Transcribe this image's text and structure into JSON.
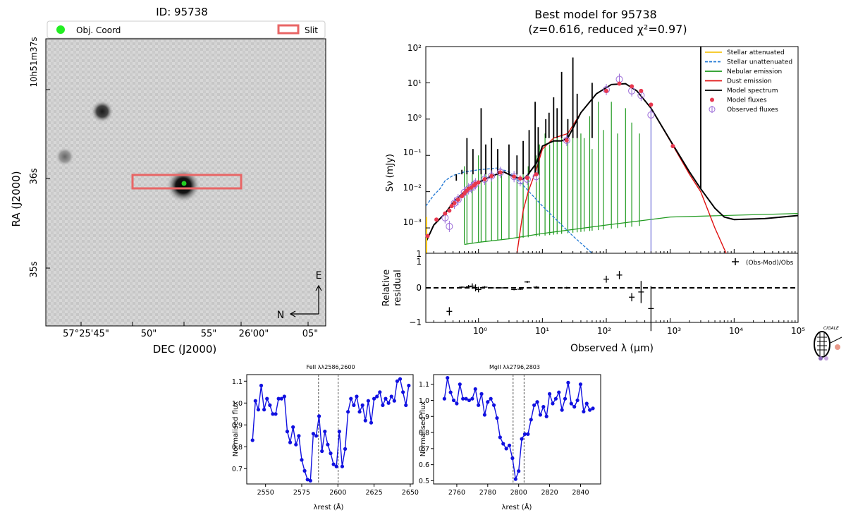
{
  "image_panel": {
    "title": "ID: 95738",
    "legend": {
      "obj_coord": "Obj. Coord",
      "slit": "Slit"
    },
    "xlabel": "DEC (J2000)",
    "ylabel": "RA (J2000)",
    "xticks": [
      "57°25'45\"",
      "50\"",
      "55\"",
      "26'00\"",
      "05\""
    ],
    "yticks": {
      "t37": "10h51m37s",
      "t36": "36s",
      "t35": "35s"
    },
    "compass": {
      "north": "N",
      "east": "E"
    },
    "colors": {
      "slit": "#e86666",
      "dot": "#22cc22"
    }
  },
  "sed_panel": {
    "title_line1": "Best model for 95738",
    "title_line2": "(z=0.616, reduced χ²=0.97)",
    "ylabel": "Sν (mJy)",
    "resid_label_1": "Relative",
    "resid_label_2": "residual",
    "xlabel": "Observed λ (μm)",
    "yticks_sed": [
      "10²",
      "10¹",
      "10⁰",
      "10⁻¹",
      "10⁻²",
      "10⁻³",
      "1"
    ],
    "yticks_res": [
      "1",
      "0",
      "−1"
    ],
    "xticks": [
      "10⁰",
      "10¹",
      "10²",
      "10³",
      "10⁴",
      "10⁵"
    ],
    "legend": [
      {
        "label": "Stellar attenuated",
        "color": "#f5c518",
        "style": "solid"
      },
      {
        "label": "Stellar unattenuated",
        "color": "#1f77d4",
        "style": "dashed"
      },
      {
        "label": "Nebular emission",
        "color": "#1f9a1f",
        "style": "solid"
      },
      {
        "label": "Dust emission",
        "color": "#e01010",
        "style": "solid"
      },
      {
        "label": "Model spectrum",
        "color": "#000000",
        "style": "solid"
      },
      {
        "label": "Model fluxes",
        "color": "#e8384f",
        "style": "dot"
      },
      {
        "label": "Observed fluxes",
        "color": "#9b6bd8",
        "style": "errcircle"
      }
    ],
    "resid_legend": "(Obs-Mod)/Obs",
    "logo_text": "CIGALE"
  },
  "chart_data": [
    {
      "type": "scatter",
      "title": "Best model for 95738 (z=0.616, reduced χ²=0.97)",
      "xlabel": "Observed λ (μm)",
      "ylabel": "Sν (mJy)",
      "xscale": "log",
      "yscale": "log",
      "xlim": [
        0.15,
        100000
      ],
      "ylim": [
        0.0002,
        100
      ],
      "model_fluxes": {
        "x": [
          0.16,
          0.22,
          0.3,
          0.35,
          0.38,
          0.42,
          0.48,
          0.55,
          0.6,
          0.65,
          0.7,
          0.77,
          0.85,
          0.9,
          1.0,
          1.25,
          1.6,
          2.2,
          3.6,
          4.5,
          5.8,
          8.0,
          24,
          100,
          160,
          250,
          350,
          500,
          1100
        ],
        "y": [
          0.0006,
          0.0017,
          0.0025,
          0.003,
          0.004,
          0.0048,
          0.006,
          0.0075,
          0.009,
          0.0105,
          0.012,
          0.013,
          0.015,
          0.0165,
          0.018,
          0.022,
          0.027,
          0.034,
          0.026,
          0.023,
          0.024,
          0.03,
          0.26,
          6.0,
          9.5,
          8.0,
          6.0,
          2.5,
          0.18
        ]
      },
      "observed_fluxes": {
        "x": [
          0.3,
          0.35,
          0.42,
          0.48,
          0.6,
          0.7,
          0.77,
          0.85,
          0.9,
          1.25,
          1.6,
          2.2,
          3.6,
          4.5,
          5.8,
          8.0,
          24,
          100,
          160,
          250,
          350,
          500
        ],
        "y": [
          0.0019,
          0.0011,
          0.0048,
          0.006,
          0.0095,
          0.012,
          0.013,
          0.015,
          0.0165,
          0.022,
          0.027,
          0.034,
          0.026,
          0.02,
          0.022,
          0.026,
          0.26,
          6.5,
          12.5,
          6.0,
          4.5,
          1.3
        ]
      },
      "residuals": {
        "x": [
          0.35,
          0.55,
          0.7,
          0.8,
          0.9,
          1.0,
          1.25,
          1.6,
          2.2,
          3.6,
          4.5,
          5.8,
          8.0,
          24,
          100,
          160,
          250,
          350,
          500
        ],
        "y": [
          -0.68,
          0.02,
          0.03,
          0.05,
          0.0,
          -0.05,
          0.02,
          0.0,
          0.0,
          -0.05,
          -0.04,
          0.17,
          0.02,
          0.0,
          0.25,
          0.37,
          -0.27,
          -0.12,
          -0.6
        ],
        "yerr": [
          0.12,
          0.02,
          0.05,
          0.08,
          0.1,
          0.08,
          0.03,
          0.02,
          0.02,
          0.02,
          0.02,
          0.03,
          0.03,
          0.03,
          0.1,
          0.12,
          0.12,
          0.32,
          0.65
        ]
      }
    },
    {
      "type": "line",
      "title": "FeII λλ2586,2600",
      "xlabel": "λrest (Å)",
      "ylabel": "Normalised flux",
      "xlim": [
        2537,
        2652
      ],
      "ylim": [
        0.63,
        1.13
      ],
      "xticks": [
        2550,
        2575,
        2600,
        2625,
        2650
      ],
      "yticks": [
        0.7,
        0.8,
        0.9,
        1.0,
        1.1
      ],
      "vlines": [
        2586.6,
        2600.2
      ],
      "x": [
        2541,
        2543,
        2545,
        2547,
        2549,
        2551,
        2553,
        2555,
        2557,
        2559,
        2561,
        2563,
        2565,
        2567,
        2569,
        2571,
        2573,
        2575,
        2577,
        2579,
        2581,
        2583,
        2585,
        2587,
        2589,
        2591,
        2593,
        2595,
        2597,
        2599,
        2601,
        2603,
        2605,
        2607,
        2609,
        2611,
        2613,
        2615,
        2617,
        2619,
        2621,
        2623,
        2625,
        2627,
        2629,
        2631,
        2633,
        2635,
        2637,
        2639,
        2641,
        2643,
        2645,
        2647,
        2649
      ],
      "y": [
        0.83,
        1.01,
        0.97,
        1.08,
        0.97,
        1.02,
        0.99,
        0.95,
        0.95,
        1.02,
        1.02,
        1.03,
        0.87,
        0.82,
        0.89,
        0.81,
        0.85,
        0.74,
        0.69,
        0.65,
        0.645,
        0.86,
        0.85,
        0.94,
        0.78,
        0.87,
        0.81,
        0.77,
        0.72,
        0.71,
        0.87,
        0.71,
        0.79,
        0.96,
        1.02,
        0.99,
        1.03,
        0.96,
        0.99,
        0.92,
        1.01,
        0.91,
        1.02,
        1.03,
        1.05,
        0.99,
        1.02,
        1.0,
        1.03,
        1.01,
        1.1,
        1.11,
        1.05,
        0.99,
        1.08
      ]
    },
    {
      "type": "line",
      "title": "MgII λλ2796,2803",
      "xlabel": "λrest (Å)",
      "ylabel": "Normalised flux",
      "xlim": [
        2745,
        2853
      ],
      "ylim": [
        0.48,
        1.16
      ],
      "xticks": [
        2760,
        2780,
        2800,
        2820,
        2840
      ],
      "yticks": [
        0.5,
        0.6,
        0.7,
        0.8,
        0.9,
        1.0,
        1.1
      ],
      "vlines": [
        2796.4,
        2803.5
      ],
      "x": [
        2752,
        2754,
        2756,
        2758,
        2760,
        2762,
        2764,
        2766,
        2768,
        2770,
        2772,
        2774,
        2776,
        2778,
        2780,
        2782,
        2784,
        2786,
        2788,
        2790,
        2792,
        2794,
        2796,
        2798,
        2800,
        2802,
        2804,
        2806,
        2808,
        2810,
        2812,
        2814,
        2816,
        2818,
        2820,
        2822,
        2824,
        2826,
        2828,
        2830,
        2832,
        2834,
        2836,
        2838,
        2840,
        2842,
        2844,
        2846,
        2848
      ],
      "y": [
        1.01,
        1.14,
        1.05,
        1.0,
        0.98,
        1.1,
        1.01,
        1.01,
        1.0,
        1.01,
        1.07,
        0.97,
        1.04,
        0.91,
        0.99,
        1.01,
        0.97,
        0.89,
        0.77,
        0.73,
        0.7,
        0.72,
        0.64,
        0.51,
        0.56,
        0.76,
        0.79,
        0.79,
        0.88,
        0.97,
        0.99,
        0.91,
        0.96,
        0.9,
        1.04,
        0.98,
        1.01,
        1.05,
        0.94,
        1.01,
        1.11,
        0.98,
        0.96,
        1.0,
        1.1,
        0.93,
        0.98,
        0.94,
        0.95
      ]
    }
  ]
}
